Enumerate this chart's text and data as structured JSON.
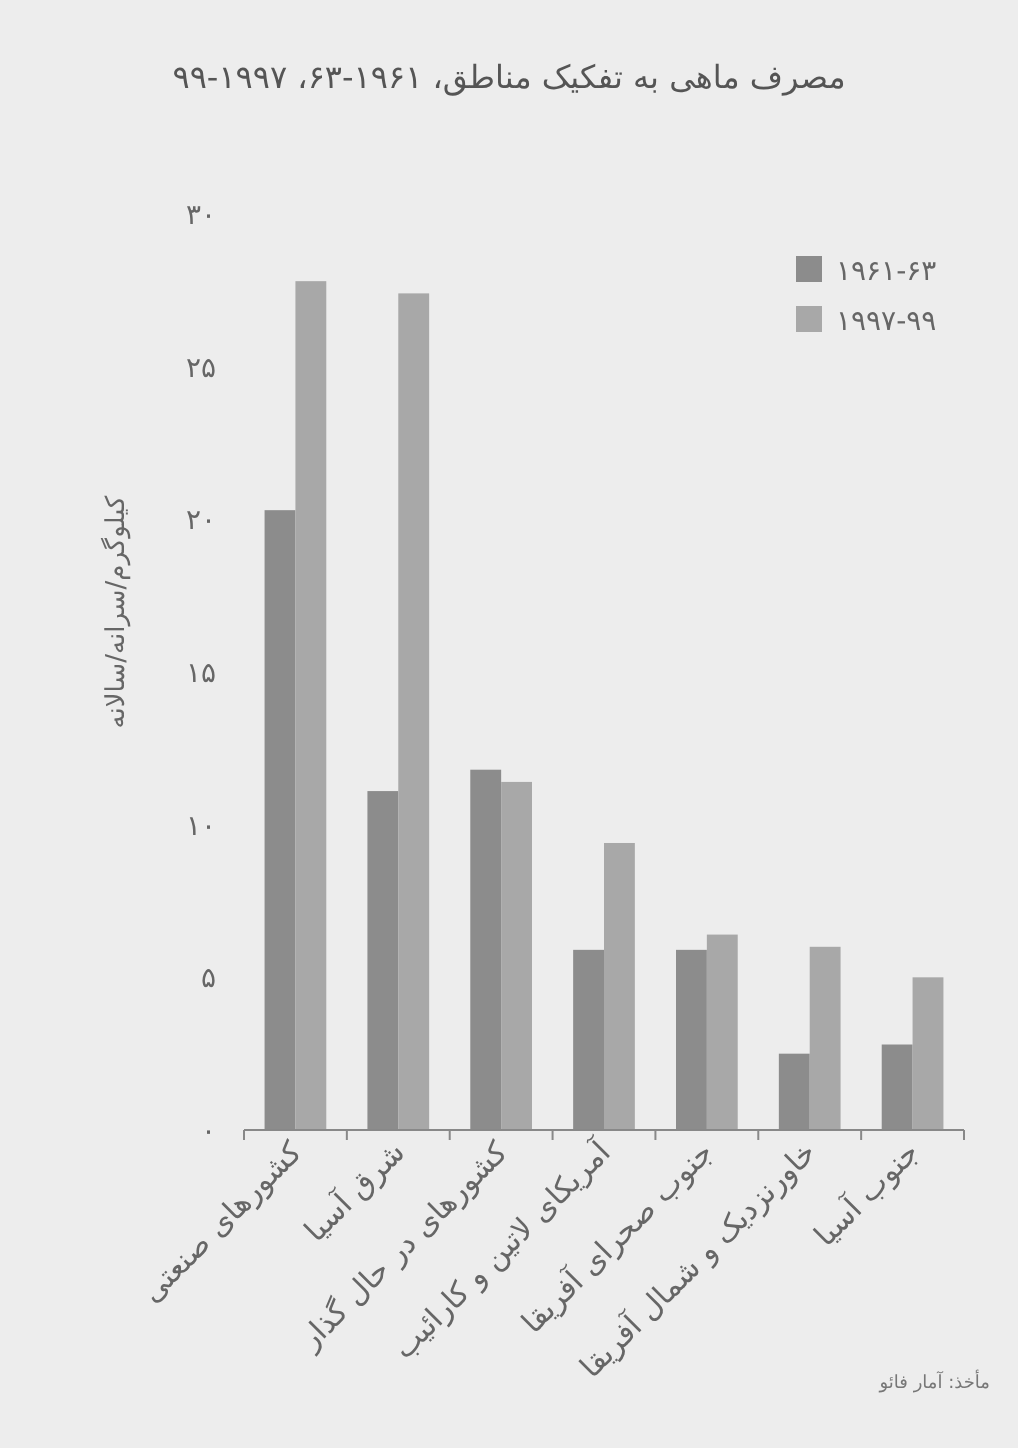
{
  "chart_data": {
    "type": "bar",
    "title": "مصرف ماهی به تفکیک مناطق، ۱۹۶۱-۶۳، ۱۹۹۷-۹۹",
    "ylabel": "کیلوگرم/سرانه/سالانه",
    "categories": [
      "کشورهای صنعتی",
      "شرق آسیا",
      "کشورهای در حال گذار",
      "آمریکای لاتین و کارائیب",
      "جنوب صحرای آفریقا",
      "خاورنزدیک و شمال آفریقا",
      "جنوب آسیا"
    ],
    "series": [
      {
        "name": "۱۹۶۱-۶۳",
        "color": "#8c8c8c",
        "values": [
          20.3,
          11.1,
          11.8,
          5.9,
          5.9,
          2.5,
          2.8
        ]
      },
      {
        "name": "۱۹۹۷-۹۹",
        "color": "#a8a8a8",
        "values": [
          27.8,
          27.4,
          11.4,
          9.4,
          6.4,
          6.0,
          5.0
        ]
      }
    ],
    "ylim": [
      0,
      30
    ],
    "yticks": [
      {
        "value": 0,
        "label": "۰"
      },
      {
        "value": 5,
        "label": "۵"
      },
      {
        "value": 10,
        "label": "۱۰"
      },
      {
        "value": 15,
        "label": "۱۵"
      },
      {
        "value": 20,
        "label": "۲۰"
      },
      {
        "value": 25,
        "label": "۲۵"
      },
      {
        "value": 30,
        "label": "۳۰"
      }
    ],
    "legend": "top right",
    "grid": false,
    "annotations": [
      "مأخذ: آمار فائو"
    ]
  }
}
